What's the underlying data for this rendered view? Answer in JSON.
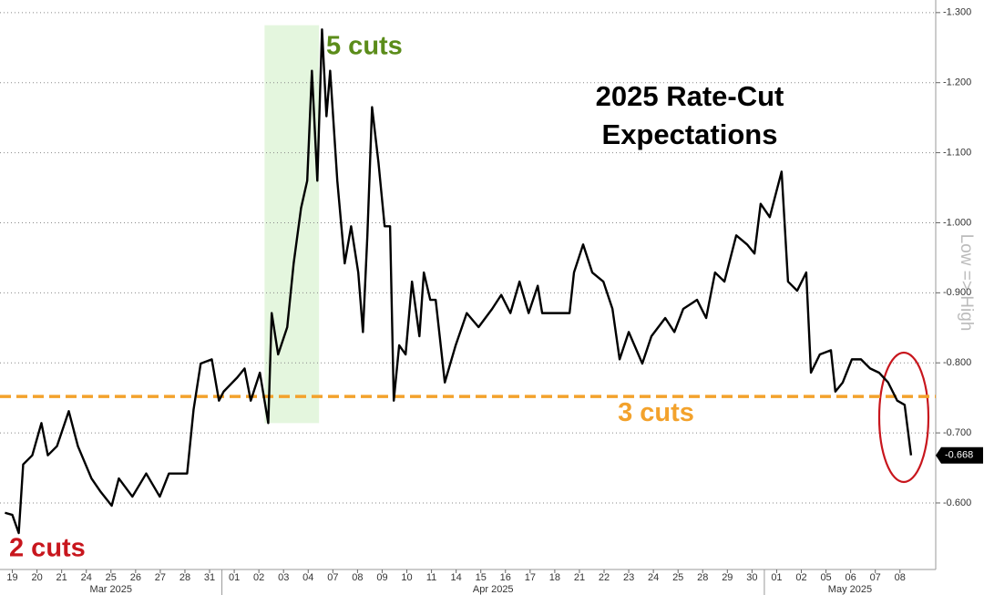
{
  "chart_data": {
    "type": "line",
    "title": [
      "2025 Rate-Cut",
      "Expectations"
    ],
    "y_label": "Low => High",
    "annotations": [
      {
        "text": "5 cuts",
        "color": "#5b8c1a"
      },
      {
        "text": "2 cuts",
        "color": "#c8161d"
      }
    ],
    "reference_line": {
      "value": -0.752,
      "label": "3 cuts",
      "color": "#f3a22c"
    },
    "highlight": {
      "x": [
        10.23,
        12.44
      ],
      "y": [
        -0.714,
        -1.282
      ],
      "color": "#e4f6de"
    },
    "last_value": {
      "value": -0.668,
      "label": "-0.668"
    },
    "grid": true,
    "xlim": [
      -0.5,
      37.45
    ],
    "ylim": [
      -0.505,
      -1.318
    ],
    "yticks": [
      {
        "value": -0.6,
        "label": "-0.600"
      },
      {
        "value": -0.7,
        "label": "-0.700"
      },
      {
        "value": -0.8,
        "label": "-0.800"
      },
      {
        "value": -0.9,
        "label": "-0.900"
      },
      {
        "value": -1.0,
        "label": "-1.000"
      },
      {
        "value": -1.1,
        "label": "-1.100"
      },
      {
        "value": -1.2,
        "label": "-1.200"
      },
      {
        "value": -1.3,
        "label": "-1.300"
      }
    ],
    "xticks": [
      {
        "value": 0,
        "label": "19"
      },
      {
        "value": 1,
        "label": "20"
      },
      {
        "value": 2,
        "label": "21"
      },
      {
        "value": 3,
        "label": "24"
      },
      {
        "value": 4,
        "label": "25"
      },
      {
        "value": 5,
        "label": "26"
      },
      {
        "value": 6,
        "label": "27"
      },
      {
        "value": 7,
        "label": "28"
      },
      {
        "value": 8,
        "label": "31"
      },
      {
        "value": 9,
        "label": "01"
      },
      {
        "value": 10,
        "label": "02"
      },
      {
        "value": 11,
        "label": "03"
      },
      {
        "value": 12,
        "label": "04"
      },
      {
        "value": 13,
        "label": "07"
      },
      {
        "value": 14,
        "label": "08"
      },
      {
        "value": 15,
        "label": "09"
      },
      {
        "value": 16,
        "label": "10"
      },
      {
        "value": 17,
        "label": "11"
      },
      {
        "value": 18,
        "label": "14"
      },
      {
        "value": 19,
        "label": "15"
      },
      {
        "value": 20,
        "label": "16"
      },
      {
        "value": 21,
        "label": "17"
      },
      {
        "value": 22,
        "label": "18"
      },
      {
        "value": 23,
        "label": "21"
      },
      {
        "value": 24,
        "label": "22"
      },
      {
        "value": 25,
        "label": "23"
      },
      {
        "value": 26,
        "label": "24"
      },
      {
        "value": 27,
        "label": "25"
      },
      {
        "value": 28,
        "label": "28"
      },
      {
        "value": 29,
        "label": "29"
      },
      {
        "value": 30,
        "label": "30"
      },
      {
        "value": 31,
        "label": "01"
      },
      {
        "value": 32,
        "label": "02"
      },
      {
        "value": 33,
        "label": "05"
      },
      {
        "value": 34,
        "label": "06"
      },
      {
        "value": 35,
        "label": "07"
      },
      {
        "value": 36,
        "label": "08"
      }
    ],
    "months": [
      {
        "label": "Mar 2025",
        "start": -0.5,
        "end": 8.5
      },
      {
        "label": "Apr 2025",
        "start": 8.5,
        "end": 30.5
      },
      {
        "label": "May 2025",
        "start": 30.5,
        "end": 37.45
      }
    ],
    "series": [
      {
        "color": "#000000",
        "x": [
          -0.3,
          0,
          0.26,
          0.44,
          0.81,
          1.18,
          1.44,
          1.81,
          2.29,
          2.66,
          3.21,
          3.58,
          4.03,
          4.32,
          4.87,
          5.43,
          5.98,
          6.35,
          7.09,
          7.35,
          7.64,
          8.09,
          8.38,
          8.57,
          9.12,
          9.42,
          9.67,
          10.04,
          10.38,
          10.52,
          10.78,
          11.15,
          11.41,
          11.71,
          11.96,
          12.15,
          12.37,
          12.56,
          12.74,
          12.89,
          13.18,
          13.48,
          13.74,
          14.03,
          14.22,
          14.4,
          14.59,
          14.85,
          15.1,
          15.32,
          15.47,
          15.69,
          15.95,
          16.21,
          16.51,
          16.69,
          16.95,
          17.17,
          17.54,
          17.98,
          18.43,
          18.91,
          19.46,
          19.83,
          20.2,
          20.57,
          20.94,
          21.31,
          21.49,
          22.6,
          22.78,
          23.15,
          23.52,
          23.97,
          24.34,
          24.63,
          25.0,
          25.55,
          25.92,
          26.48,
          26.85,
          27.21,
          27.77,
          28.14,
          28.5,
          28.88,
          29.36,
          29.8,
          30.1,
          30.35,
          30.72,
          30.91,
          31.2,
          31.46,
          31.83,
          32.2,
          32.39,
          32.75,
          33.2,
          33.38,
          33.68,
          34.05,
          34.42,
          34.79,
          35.15,
          35.52,
          35.89,
          36.19,
          36.45
        ],
        "values": [
          -0.586,
          -0.583,
          -0.557,
          -0.655,
          -0.668,
          -0.714,
          -0.668,
          -0.681,
          -0.731,
          -0.681,
          -0.635,
          -0.616,
          -0.596,
          -0.635,
          -0.609,
          -0.642,
          -0.609,
          -0.642,
          -0.642,
          -0.733,
          -0.799,
          -0.805,
          -0.746,
          -0.759,
          -0.779,
          -0.792,
          -0.746,
          -0.786,
          -0.714,
          -0.871,
          -0.812,
          -0.851,
          -0.942,
          -1.021,
          -1.06,
          -1.217,
          -1.06,
          -1.276,
          -1.152,
          -1.217,
          -1.06,
          -0.942,
          -0.995,
          -0.929,
          -0.844,
          -0.982,
          -1.165,
          -1.086,
          -0.995,
          -0.995,
          -0.746,
          -0.825,
          -0.812,
          -0.916,
          -0.838,
          -0.929,
          -0.89,
          -0.89,
          -0.772,
          -0.825,
          -0.871,
          -0.851,
          -0.877,
          -0.897,
          -0.871,
          -0.916,
          -0.871,
          -0.91,
          -0.871,
          -0.871,
          -0.929,
          -0.969,
          -0.929,
          -0.916,
          -0.877,
          -0.805,
          -0.844,
          -0.799,
          -0.838,
          -0.864,
          -0.844,
          -0.877,
          -0.89,
          -0.864,
          -0.929,
          -0.916,
          -0.982,
          -0.969,
          -0.956,
          -1.027,
          -1.008,
          -1.034,
          -1.073,
          -0.916,
          -0.903,
          -0.929,
          -0.786,
          -0.812,
          -0.818,
          -0.759,
          -0.772,
          -0.805,
          -0.805,
          -0.792,
          -0.786,
          -0.772,
          -0.746,
          -0.74,
          -0.668
        ]
      }
    ]
  }
}
